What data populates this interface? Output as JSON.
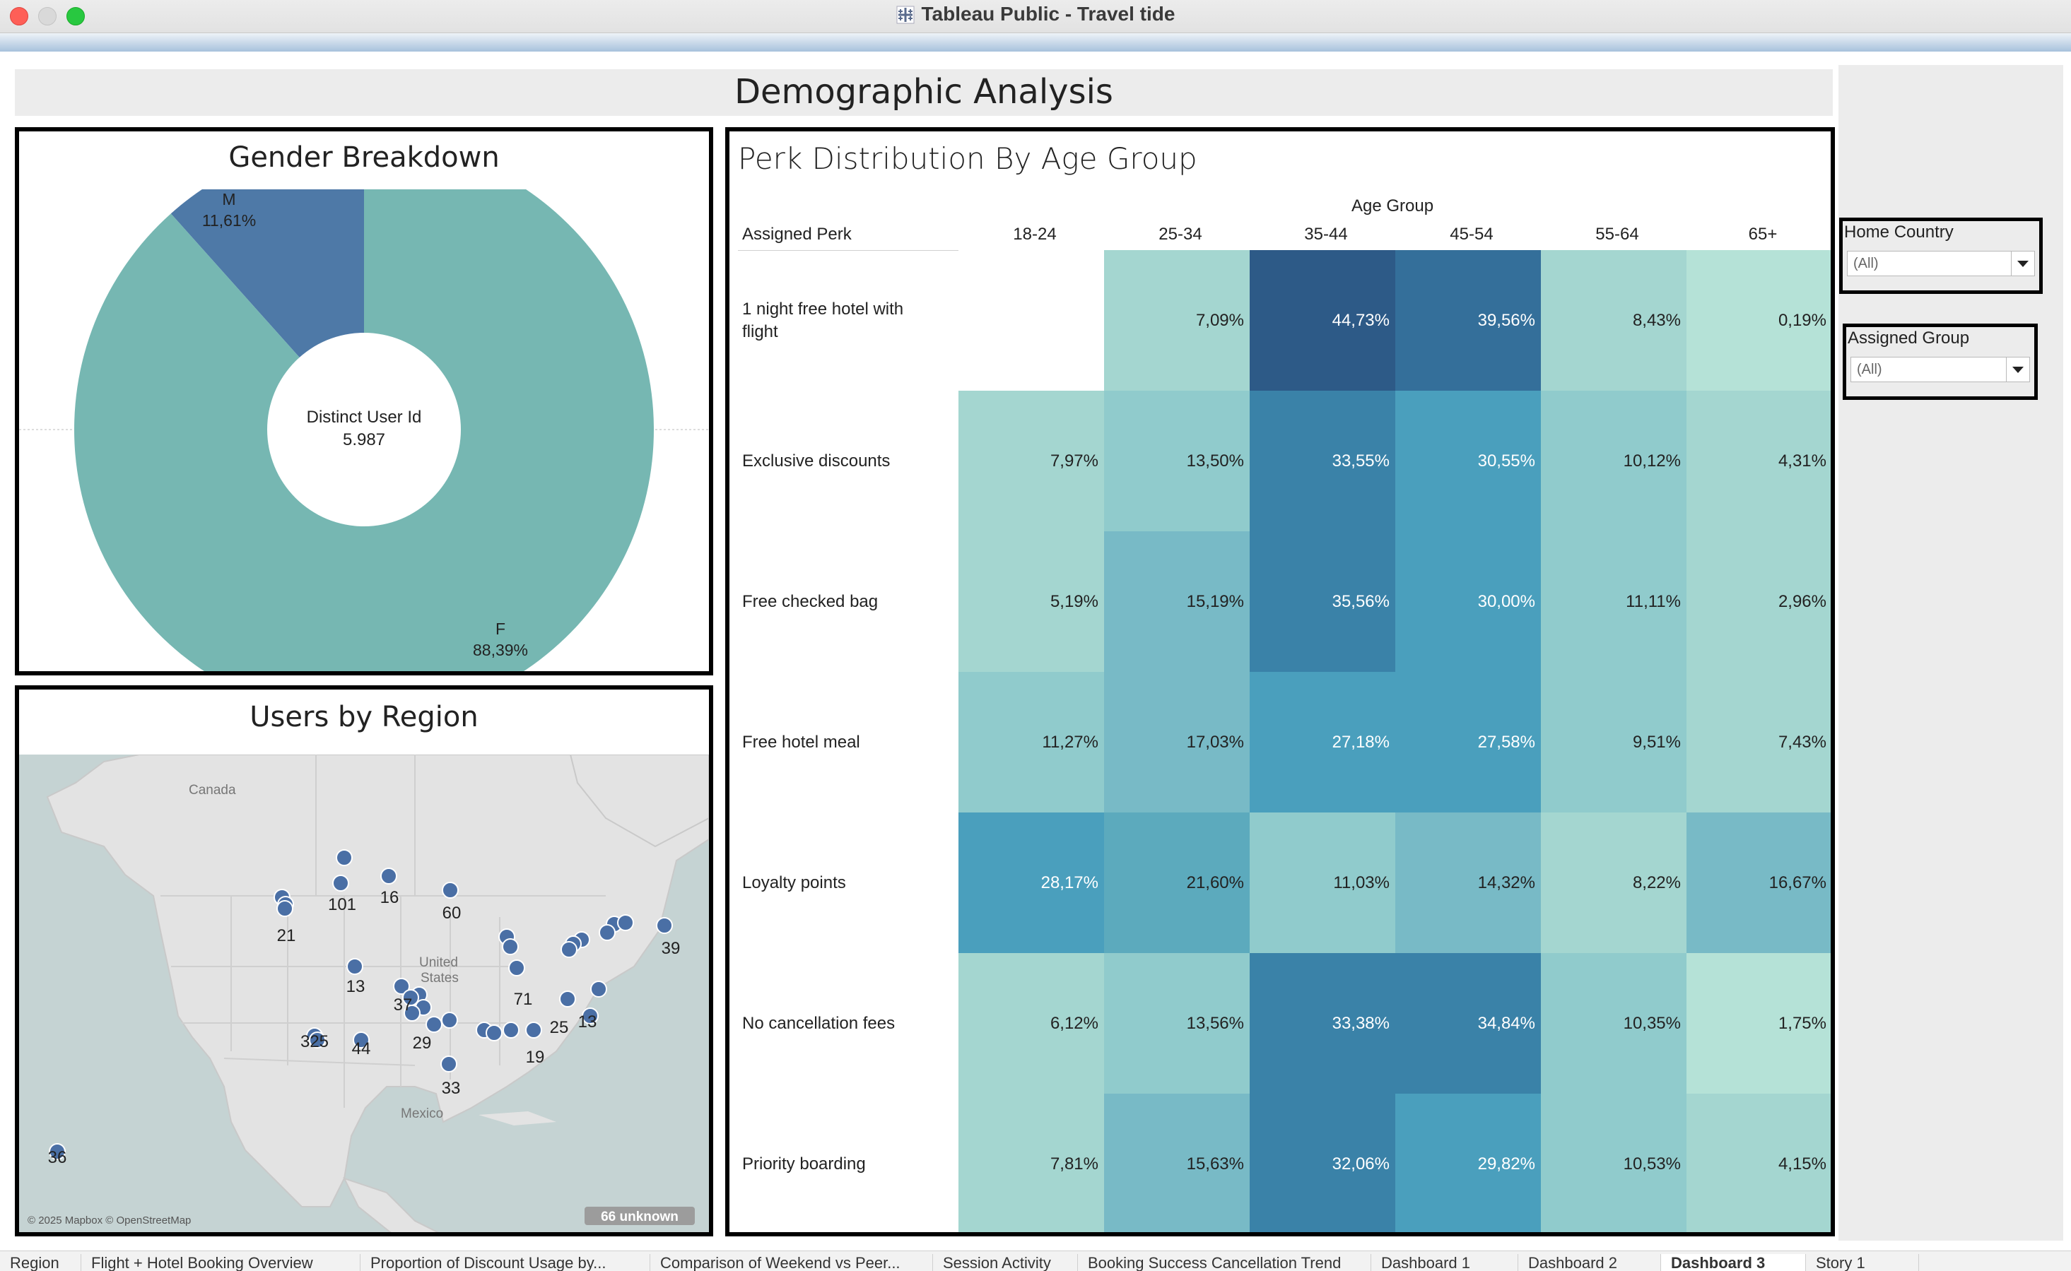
{
  "window": {
    "title": "Tableau Public - Travel tide",
    "controls": [
      "close",
      "minimize",
      "zoom"
    ]
  },
  "dashboard": {
    "title": "Demographic Analysis"
  },
  "gender": {
    "title": "Gender Breakdown",
    "center_label": "Distinct User Id",
    "center_value": "5.987",
    "slices": [
      {
        "label": "M",
        "pct_text": "11,61%",
        "value": 11.61,
        "color": "#4e79a7"
      },
      {
        "label": "F",
        "pct_text": "88,39%",
        "value": 88.39,
        "color": "#76b7b2"
      }
    ]
  },
  "map": {
    "title": "Users by Region",
    "attribution": "© 2025 Mapbox © OpenStreetMap",
    "unknown_badge": "66 unknown",
    "place_labels": {
      "canada": "Canada",
      "united": "United",
      "states": "States",
      "mexico": "Mexico"
    },
    "cluster_labels": [
      "101",
      "16",
      "60",
      "21",
      "39",
      "13",
      "37",
      "71",
      "13",
      "25",
      "325",
      "44",
      "29",
      "19",
      "33",
      "36"
    ]
  },
  "perk": {
    "title": "Perk Distribution By Age Group",
    "row_header": "Assigned Perk",
    "col_header": "Age Group",
    "columns": [
      "18-24",
      "25-34",
      "35-44",
      "45-54",
      "55-64",
      "65+"
    ],
    "rows": [
      {
        "label": "1 night free hotel with flight",
        "cells": [
          "",
          "7,09%",
          "44,73%",
          "39,56%",
          "8,43%",
          "0,19%"
        ]
      },
      {
        "label": "Exclusive discounts",
        "cells": [
          "7,97%",
          "13,50%",
          "33,55%",
          "30,55%",
          "10,12%",
          "4,31%"
        ]
      },
      {
        "label": "Free checked bag",
        "cells": [
          "5,19%",
          "15,19%",
          "35,56%",
          "30,00%",
          "11,11%",
          "2,96%"
        ]
      },
      {
        "label": "Free hotel meal",
        "cells": [
          "11,27%",
          "17,03%",
          "27,18%",
          "27,58%",
          "9,51%",
          "7,43%"
        ]
      },
      {
        "label": "Loyalty points",
        "cells": [
          "28,17%",
          "21,60%",
          "11,03%",
          "14,32%",
          "8,22%",
          "16,67%"
        ]
      },
      {
        "label": "No cancellation fees",
        "cells": [
          "6,12%",
          "13,56%",
          "33,38%",
          "34,84%",
          "10,35%",
          "1,75%"
        ]
      },
      {
        "label": "Priority boarding",
        "cells": [
          "7,81%",
          "15,63%",
          "32,06%",
          "29,82%",
          "10,53%",
          "4,15%"
        ]
      }
    ]
  },
  "filters": {
    "home_country": {
      "label": "Home Country",
      "value": "(All)"
    },
    "assigned_group": {
      "label": "Assigned Group",
      "value": "(All)"
    }
  },
  "tabs": [
    {
      "label": "Region"
    },
    {
      "label": "Flight + Hotel Booking Overview"
    },
    {
      "label": "Proportion of Discount Usage by..."
    },
    {
      "label": "Comparison of Weekend vs Peer..."
    },
    {
      "label": "Session Activity"
    },
    {
      "label": "Booking Success Cancellation Trend"
    },
    {
      "label": "Dashboard 1"
    },
    {
      "label": "Dashboard 2"
    },
    {
      "label": "Dashboard 3",
      "active": true
    },
    {
      "label": "Story 1"
    }
  ],
  "colors": {
    "accent_blue": "#4e79a7",
    "accent_teal": "#76b7b2",
    "map_marker": "#4a6fa5"
  }
}
